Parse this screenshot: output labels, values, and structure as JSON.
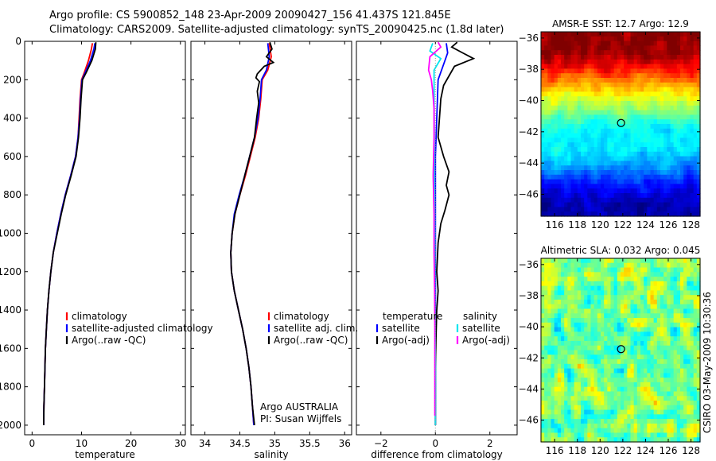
{
  "header": {
    "line1": "Argo profile: CS 5900852_148 23-Apr-2009 20090427_156 41.437S 121.845E",
    "line2": "Climatology: CARS2009. Satellite-adjusted climatology: synTS_20090425.nc (1.8d later)"
  },
  "colors": {
    "climatology": "#ff0000",
    "satellite": "#0000ff",
    "argo": "#000000",
    "sat_diff_salinity": "#00e5ee",
    "argo_diff_salinity": "#ff00ff",
    "axis": "#000000"
  },
  "chart_data": [
    {
      "id": "temperature",
      "type": "line",
      "xlabel": "temperature",
      "xlim": [
        -1.5,
        31
      ],
      "ylim": [
        2050,
        0
      ],
      "xticks": [
        0,
        10,
        20,
        30
      ],
      "yticks": [
        0,
        200,
        400,
        600,
        800,
        1000,
        1200,
        1400,
        1600,
        1800,
        2000
      ],
      "legend": [
        "climatology",
        "satellite-adjusted climatology",
        "Argo(..raw -QC)"
      ],
      "series": [
        {
          "name": "climatology",
          "color": "#ff0000",
          "points": [
            [
              12.2,
              10
            ],
            [
              12.0,
              40
            ],
            [
              11.4,
              100
            ],
            [
              10.6,
              160
            ],
            [
              10.0,
              200
            ],
            [
              9.7,
              300
            ],
            [
              9.5,
              400
            ],
            [
              9.3,
              500
            ],
            [
              8.8,
              600
            ],
            [
              7.8,
              700
            ],
            [
              6.7,
              800
            ],
            [
              5.8,
              900
            ],
            [
              5.0,
              1000
            ],
            [
              4.3,
              1100
            ],
            [
              3.8,
              1200
            ],
            [
              3.4,
              1300
            ],
            [
              3.1,
              1400
            ],
            [
              2.9,
              1500
            ],
            [
              2.7,
              1600
            ],
            [
              2.6,
              1700
            ],
            [
              2.5,
              1800
            ],
            [
              2.4,
              1900
            ],
            [
              2.35,
              2000
            ]
          ]
        },
        {
          "name": "satellite",
          "color": "#0000ff",
          "points": [
            [
              12.7,
              10
            ],
            [
              12.5,
              40
            ],
            [
              11.8,
              100
            ],
            [
              10.8,
              160
            ],
            [
              10.1,
              200
            ],
            [
              9.8,
              300
            ],
            [
              9.6,
              400
            ],
            [
              9.3,
              500
            ],
            [
              8.8,
              600
            ],
            [
              7.8,
              700
            ],
            [
              6.7,
              800
            ],
            [
              5.8,
              900
            ],
            [
              5.0,
              1000
            ],
            [
              4.3,
              1100
            ],
            [
              3.8,
              1200
            ],
            [
              3.4,
              1300
            ],
            [
              3.1,
              1400
            ],
            [
              2.9,
              1500
            ],
            [
              2.7,
              1600
            ],
            [
              2.6,
              1700
            ],
            [
              2.5,
              1800
            ],
            [
              2.4,
              1900
            ],
            [
              2.35,
              2000
            ]
          ]
        },
        {
          "name": "argo",
          "color": "#000000",
          "points": [
            [
              12.9,
              5
            ],
            [
              12.8,
              40
            ],
            [
              12.1,
              100
            ],
            [
              11.0,
              160
            ],
            [
              10.2,
              200
            ],
            [
              9.9,
              300
            ],
            [
              9.7,
              400
            ],
            [
              9.4,
              500
            ],
            [
              8.9,
              600
            ],
            [
              7.9,
              700
            ],
            [
              6.8,
              800
            ],
            [
              5.9,
              900
            ],
            [
              5.1,
              1000
            ],
            [
              4.3,
              1100
            ],
            [
              3.8,
              1200
            ],
            [
              3.4,
              1300
            ],
            [
              3.1,
              1400
            ],
            [
              2.9,
              1500
            ],
            [
              2.7,
              1600
            ],
            [
              2.6,
              1700
            ],
            [
              2.5,
              1800
            ],
            [
              2.4,
              1900
            ],
            [
              2.35,
              2000
            ]
          ]
        }
      ]
    },
    {
      "id": "salinity",
      "type": "line",
      "xlabel": "salinity",
      "xlim": [
        33.8,
        36.1
      ],
      "ylim": [
        2050,
        0
      ],
      "xticks": [
        34,
        34.5,
        35,
        35.5,
        36
      ],
      "legend": [
        "climatology",
        "satellite adj. clim.",
        "Argo(..raw -QC)"
      ],
      "annotation": [
        "Argo AUSTRALIA",
        "PI: Susan Wijffels"
      ],
      "series": [
        {
          "name": "climatology",
          "color": "#ff0000",
          "points": [
            [
              34.92,
              10
            ],
            [
              34.95,
              80
            ],
            [
              34.9,
              150
            ],
            [
              34.82,
              200
            ],
            [
              34.8,
              300
            ],
            [
              34.77,
              400
            ],
            [
              34.72,
              500
            ],
            [
              34.65,
              600
            ],
            [
              34.58,
              700
            ],
            [
              34.5,
              800
            ],
            [
              34.43,
              900
            ],
            [
              34.39,
              1000
            ],
            [
              34.37,
              1100
            ],
            [
              34.38,
              1200
            ],
            [
              34.42,
              1300
            ],
            [
              34.48,
              1400
            ],
            [
              34.54,
              1500
            ],
            [
              34.59,
              1600
            ],
            [
              34.63,
              1700
            ],
            [
              34.66,
              1800
            ],
            [
              34.68,
              1900
            ],
            [
              34.7,
              2000
            ]
          ]
        },
        {
          "name": "satellite",
          "color": "#0000ff",
          "points": [
            [
              34.9,
              10
            ],
            [
              34.92,
              80
            ],
            [
              34.88,
              150
            ],
            [
              34.81,
              200
            ],
            [
              34.79,
              300
            ],
            [
              34.76,
              400
            ],
            [
              34.71,
              500
            ],
            [
              34.64,
              600
            ],
            [
              34.57,
              700
            ],
            [
              34.49,
              800
            ],
            [
              34.42,
              900
            ],
            [
              34.39,
              1000
            ],
            [
              34.37,
              1100
            ],
            [
              34.38,
              1200
            ],
            [
              34.42,
              1300
            ],
            [
              34.48,
              1400
            ],
            [
              34.54,
              1500
            ],
            [
              34.59,
              1600
            ],
            [
              34.63,
              1700
            ],
            [
              34.66,
              1800
            ],
            [
              34.68,
              1900
            ],
            [
              34.7,
              2000
            ]
          ]
        },
        {
          "name": "argo",
          "color": "#000000",
          "points": [
            [
              34.93,
              5
            ],
            [
              34.96,
              40
            ],
            [
              34.88,
              80
            ],
            [
              34.98,
              110
            ],
            [
              34.85,
              130
            ],
            [
              34.75,
              170
            ],
            [
              34.73,
              190
            ],
            [
              34.78,
              210
            ],
            [
              34.75,
              260
            ],
            [
              34.77,
              320
            ],
            [
              34.74,
              400
            ],
            [
              34.71,
              500
            ],
            [
              34.64,
              600
            ],
            [
              34.57,
              700
            ],
            [
              34.5,
              800
            ],
            [
              34.43,
              900
            ],
            [
              34.39,
              1000
            ],
            [
              34.37,
              1100
            ],
            [
              34.38,
              1200
            ],
            [
              34.42,
              1300
            ],
            [
              34.48,
              1400
            ],
            [
              34.54,
              1500
            ],
            [
              34.59,
              1600
            ],
            [
              34.63,
              1700
            ],
            [
              34.66,
              1800
            ],
            [
              34.68,
              1900
            ],
            [
              34.71,
              2000
            ]
          ]
        }
      ]
    },
    {
      "id": "difference",
      "type": "line",
      "xlabel": "difference from climatology",
      "xlim": [
        -2.9,
        3.0
      ],
      "ylim": [
        2050,
        0
      ],
      "xticks": [
        -2,
        0,
        2
      ],
      "legend_groups": [
        {
          "title": "temperature",
          "entries": [
            "satellite",
            "Argo(-adj)"
          ]
        },
        {
          "title": "salinity",
          "entries": [
            "satellite",
            "Argo(-adj)"
          ]
        }
      ],
      "series": [
        {
          "name": "temperature satellite",
          "color": "#0000ff",
          "points": [
            [
              0.4,
              10
            ],
            [
              0.45,
              60
            ],
            [
              0.3,
              120
            ],
            [
              0.1,
              200
            ],
            [
              0.05,
              400
            ],
            [
              0.0,
              600
            ],
            [
              0.0,
              800
            ],
            [
              0.0,
              1000
            ],
            [
              0.0,
              1200
            ],
            [
              0.0,
              1400
            ],
            [
              0.0,
              1600
            ],
            [
              0.0,
              1800
            ],
            [
              0.0,
              2000
            ]
          ]
        },
        {
          "name": "temperature argo",
          "color": "#000000",
          "points": [
            [
              0.8,
              5
            ],
            [
              0.6,
              30
            ],
            [
              1.0,
              60
            ],
            [
              1.4,
              90
            ],
            [
              0.7,
              130
            ],
            [
              0.5,
              180
            ],
            [
              0.3,
              230
            ],
            [
              0.2,
              300
            ],
            [
              0.15,
              400
            ],
            [
              0.1,
              500
            ],
            [
              0.3,
              600
            ],
            [
              0.5,
              680
            ],
            [
              0.4,
              750
            ],
            [
              0.5,
              800
            ],
            [
              0.35,
              880
            ],
            [
              0.2,
              950
            ],
            [
              0.1,
              1050
            ],
            [
              0.05,
              1200
            ],
            [
              0.1,
              1300
            ],
            [
              0.05,
              1400
            ],
            [
              0.02,
              1550
            ],
            [
              0.0,
              1700
            ],
            [
              0.0,
              2000
            ]
          ]
        },
        {
          "name": "salinity satellite",
          "color": "#00e5ee",
          "points": [
            [
              -0.1,
              10
            ],
            [
              -0.2,
              50
            ],
            [
              0.2,
              90
            ],
            [
              -0.05,
              150
            ],
            [
              -0.05,
              300
            ],
            [
              -0.04,
              500
            ],
            [
              -0.04,
              700
            ],
            [
              -0.03,
              900
            ],
            [
              -0.02,
              1100
            ],
            [
              -0.02,
              1300
            ],
            [
              -0.01,
              1500
            ],
            [
              0.0,
              1700
            ],
            [
              0.0,
              2000
            ]
          ]
        },
        {
          "name": "salinity argo",
          "color": "#ff00ff",
          "points": [
            [
              0.1,
              5
            ],
            [
              0.2,
              30
            ],
            [
              -0.2,
              80
            ],
            [
              -0.25,
              150
            ],
            [
              -0.15,
              200
            ],
            [
              -0.1,
              260
            ],
            [
              -0.05,
              350
            ],
            [
              -0.05,
              500
            ],
            [
              -0.08,
              700
            ],
            [
              -0.05,
              900
            ],
            [
              -0.05,
              1100
            ],
            [
              -0.03,
              1300
            ],
            [
              -0.02,
              1500
            ],
            [
              -0.02,
              1800
            ],
            [
              -0.02,
              1950
            ]
          ]
        }
      ]
    },
    {
      "id": "amsre_sst_map",
      "type": "heatmap",
      "title": "AMSR-E SST: 12.7 Argo: 12.9",
      "xlim": [
        114.8,
        128.8
      ],
      "ylim": [
        -47.4,
        -35.6
      ],
      "xticks": [
        116,
        118,
        120,
        122,
        124,
        126,
        128
      ],
      "yticks": [
        -36,
        -38,
        -40,
        -42,
        -44,
        -46
      ],
      "marker": {
        "lon": 121.845,
        "lat": -41.437
      },
      "colormap": "jet",
      "value_range": [
        8,
        15
      ],
      "zonal_mean_by_lat": [
        [
          -35.6,
          15
        ],
        [
          -37.0,
          14.8
        ],
        [
          -38.0,
          14.0
        ],
        [
          -38.8,
          13.2
        ],
        [
          -39.6,
          12.5
        ],
        [
          -40.4,
          11.8
        ],
        [
          -41.2,
          11.0
        ],
        [
          -42.0,
          10.6
        ],
        [
          -43.0,
          10.5
        ],
        [
          -44.0,
          10.1
        ],
        [
          -45.0,
          9.3
        ],
        [
          -46.0,
          8.6
        ],
        [
          -47.4,
          8.2
        ]
      ]
    },
    {
      "id": "altimetric_sla_map",
      "type": "heatmap",
      "title": "Altimetric SLA: 0.032 Argo: 0.045",
      "xlim": [
        114.8,
        128.8
      ],
      "ylim": [
        -47.4,
        -35.6
      ],
      "xticks": [
        116,
        118,
        120,
        122,
        124,
        126,
        128
      ],
      "yticks": [
        -36,
        -38,
        -40,
        -42,
        -44,
        -46
      ],
      "marker": {
        "lon": 121.845,
        "lat": -41.437
      },
      "colormap": "jet",
      "value_range": [
        -0.3,
        0.3
      ],
      "zonal_mean_by_lat": [
        [
          -35.6,
          0.0
        ],
        [
          -47.4,
          0.0
        ]
      ]
    }
  ],
  "credit": "CSIRO 03-May-2009 10:30:36"
}
